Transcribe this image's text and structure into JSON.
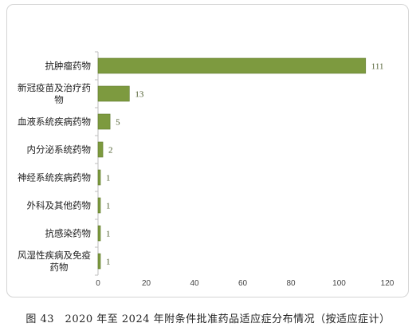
{
  "chart_data": {
    "type": "bar",
    "orientation": "horizontal",
    "categories": [
      "抗肿瘤药物",
      "新冠疫苗及治疗药物",
      "血液系统疾病药物",
      "内分泌系统药物",
      "神经系统疾病药物",
      "外科及其他药物",
      "抗感染药物",
      "风湿性疾病及免疫药物"
    ],
    "category_lines": [
      [
        "抗肿瘤药物"
      ],
      [
        "新冠疫苗及治疗药",
        "物"
      ],
      [
        "血液系统疾病药物"
      ],
      [
        "内分泌系统药物"
      ],
      [
        "神经系统疾病药物"
      ],
      [
        "外科及其他药物"
      ],
      [
        "抗感染药物"
      ],
      [
        "风湿性疾病及免疫",
        "药物"
      ]
    ],
    "values": [
      111,
      13,
      5,
      2,
      1,
      1,
      1,
      1
    ],
    "xlim": [
      0,
      120
    ],
    "xticks": [
      0,
      20,
      40,
      60,
      80,
      100,
      120
    ],
    "bar_color": "#7d9a3f",
    "bar_edge_color": "#5f7a2c",
    "grid": false,
    "data_labels": true
  },
  "caption": "图 43　2020 年至 2024 年附条件批准药品适应症分布情况（按适应症计）"
}
